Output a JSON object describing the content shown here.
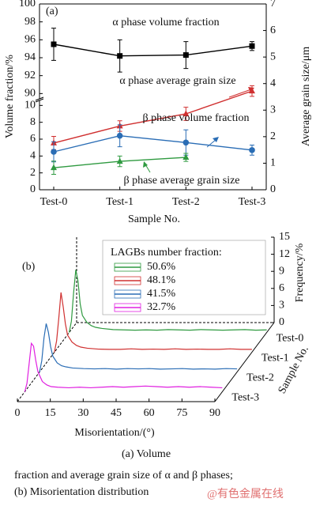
{
  "chart_data": [
    {
      "type": "line",
      "panel_label": "(a)",
      "categories": [
        "Test-0",
        "Test-1",
        "Test-2",
        "Test-3"
      ],
      "xlabel": "Sample No.",
      "ylabel": "Volume fraction/%",
      "y2label": "Average grain size/μm",
      "ylim_upper": [
        89.5,
        100
      ],
      "yticks_upper": [
        90,
        92,
        94,
        96,
        98,
        100
      ],
      "ylim": [
        0,
        10.5
      ],
      "yticks": [
        0,
        2,
        4,
        6,
        8,
        10
      ],
      "y2lim": [
        0,
        7
      ],
      "y2ticks": [
        0,
        1,
        2,
        3,
        4,
        5,
        6,
        7
      ],
      "series": [
        {
          "name": "α phase volume fraction",
          "color": "#000000",
          "marker": "square",
          "axis": "y_upper",
          "values": [
            95.5,
            94.2,
            94.3,
            95.3
          ],
          "errors": [
            1.8,
            1.8,
            1.5,
            0.5
          ]
        },
        {
          "name": "α phase average grain size",
          "color": "#d03030",
          "marker": "triangle",
          "axis": "y2",
          "values": [
            1.76,
            2.4,
            2.86,
            3.72
          ],
          "errors": [
            0.25,
            0.2,
            0.25,
            0.2
          ]
        },
        {
          "name": "β phase volume fraction",
          "color": "#2a6db5",
          "marker": "circle",
          "axis": "y",
          "values": [
            4.5,
            6.4,
            5.6,
            4.7
          ],
          "errors": [
            1.2,
            1.3,
            1.5,
            0.6
          ]
        },
        {
          "name": "β phase average grain size",
          "color": "#2f9a40",
          "marker": "triangle",
          "axis": "y2",
          "values": [
            0.83,
            1.07,
            1.22,
            null
          ],
          "errors": [
            0.25,
            0.2,
            0.15,
            null
          ]
        }
      ]
    },
    {
      "type": "waterfall",
      "panel_label": "(b)",
      "xlabel": "Misorientation/(°)",
      "ylabel": "Frequency/%",
      "zlabel": "Sample No.",
      "xlim": [
        0,
        90
      ],
      "xticks": [
        0,
        15,
        30,
        45,
        60,
        75,
        90
      ],
      "ylim": [
        0,
        15
      ],
      "yticks": [
        0,
        3,
        6,
        9,
        12,
        15
      ],
      "depth_labels": [
        "Test-0",
        "Test-1",
        "Test-2",
        "Test-3"
      ],
      "legend_title": "LAGBs number fraction:",
      "x": [
        0,
        1,
        2,
        3,
        4,
        5,
        6,
        8,
        10,
        12,
        15,
        20,
        25,
        30,
        35,
        40,
        45,
        50,
        55,
        60,
        65,
        70,
        75,
        80,
        85,
        90
      ],
      "series": [
        {
          "name": "50.6%",
          "color": "#2f9a40",
          "values": [
            0,
            2,
            7,
            11,
            9,
            5,
            3,
            1.8,
            1.2,
            0.9,
            0.7,
            0.5,
            0.45,
            0.4,
            0.45,
            0.4,
            0.5,
            0.45,
            0.4,
            0.5,
            0.45,
            0.4,
            0.45,
            0.5,
            0.4,
            0.45
          ]
        },
        {
          "name": "48.1%",
          "color": "#d03030",
          "values": [
            0,
            2,
            6,
            10.5,
            8,
            5,
            3,
            1.8,
            1.2,
            0.9,
            0.7,
            0.55,
            0.5,
            0.5,
            0.6,
            0.5,
            0.55,
            0.5,
            0.6,
            0.5,
            0.55,
            0.5,
            0.5,
            0.6,
            0.5,
            0.5
          ]
        },
        {
          "name": "41.5%",
          "color": "#2a6db5",
          "values": [
            0,
            2,
            6,
            8.5,
            7,
            4.5,
            2.8,
            1.6,
            1.1,
            0.9,
            0.7,
            0.6,
            0.55,
            0.6,
            0.5,
            0.6,
            0.55,
            0.6,
            0.5,
            0.55,
            0.6,
            0.5,
            0.55,
            0.5,
            0.6,
            0.55
          ]
        },
        {
          "name": "32.7%",
          "color": "#e020e0",
          "values": [
            0,
            1.5,
            5,
            8.5,
            8,
            5.5,
            3.5,
            1.8,
            1.2,
            0.9,
            0.8,
            0.7,
            0.8,
            0.7,
            0.8,
            0.9,
            0.8,
            0.9,
            1,
            0.9,
            0.8,
            0.9,
            0.8,
            0.9,
            0.8,
            0.7
          ]
        }
      ]
    }
  ],
  "caption": [
    "(a)  Volume",
    "fraction and average grain size of α and β phases;",
    "(b) Misorientation distribution"
  ],
  "watermark": "@有色金属在线"
}
